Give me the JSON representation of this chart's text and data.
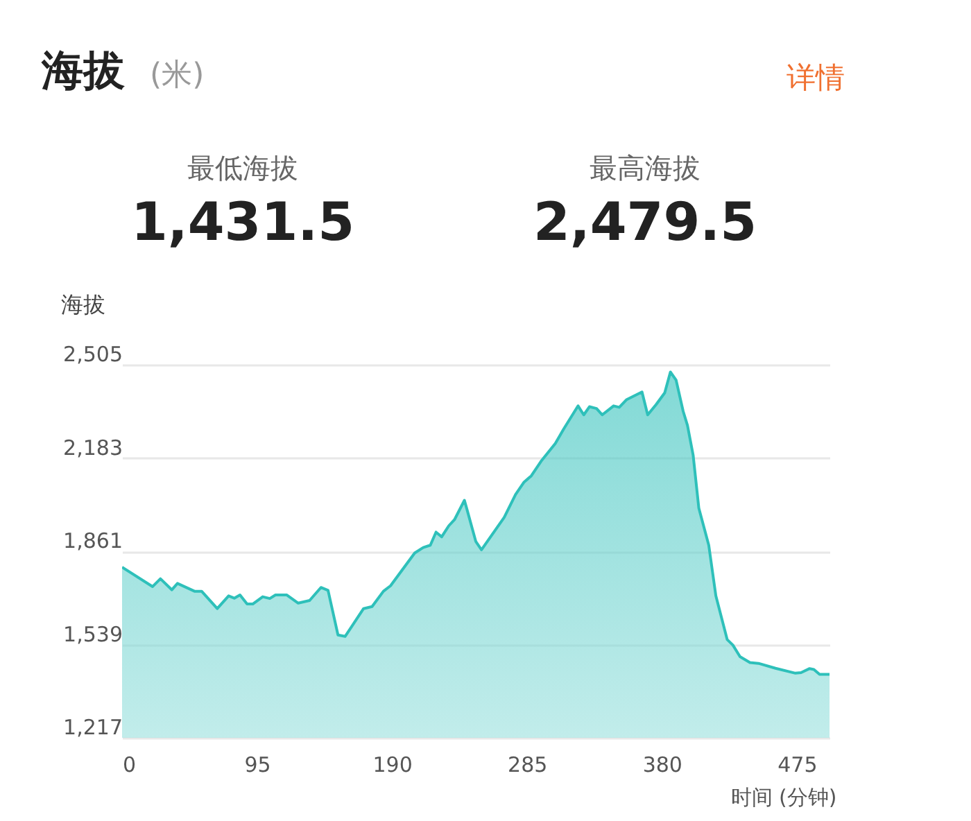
{
  "chart_data": {
    "type": "area",
    "title": "海拔",
    "subtitle": "(米)",
    "xlabel": "时间 (分钟)",
    "ylabel": "海拔",
    "annotations": [
      "详情",
      "最低海拔",
      "1,431.5",
      "最高海拔",
      "2,479.5"
    ],
    "x": [
      0,
      21.5,
      27,
      35,
      39,
      51,
      56,
      67,
      75,
      79,
      83,
      88,
      92,
      99,
      104,
      108,
      116,
      124,
      132,
      140,
      145,
      152,
      157,
      170,
      176,
      184,
      189,
      206,
      212,
      217,
      221,
      225,
      230,
      234,
      241,
      243,
      249,
      253,
      269,
      277,
      283,
      288,
      295,
      305,
      311,
      321,
      325,
      329,
      334,
      338,
      346,
      350,
      355,
      366,
      370,
      376,
      382,
      386,
      390,
      395,
      398,
      402,
      406,
      413,
      418,
      426,
      430,
      435,
      442,
      448,
      460,
      474,
      478,
      484,
      487,
      491,
      498
    ],
    "series": [
      {
        "color": "#2ec0ba",
        "values": [
          1806,
          1739,
          1766,
          1728,
          1750,
          1723,
          1723,
          1663,
          1707,
          1699,
          1710,
          1679,
          1679,
          1704,
          1698,
          1710,
          1710,
          1682,
          1691,
          1736,
          1726,
          1572,
          1567,
          1663,
          1670,
          1723,
          1742,
          1855,
          1874,
          1882,
          1927,
          1911,
          1949,
          1970,
          2037,
          2002,
          1895,
          1866,
          1978,
          2057,
          2100,
          2121,
          2172,
          2233,
          2284,
          2363,
          2332,
          2360,
          2354,
          2332,
          2363,
          2358,
          2384,
          2411,
          2332,
          2368,
          2408,
          2480,
          2452,
          2344,
          2296,
          2193,
          2010,
          1882,
          1707,
          1556,
          1537,
          1497,
          1477,
          1474,
          1457,
          1440,
          1442,
          1456,
          1453,
          1436,
          1436
        ]
      }
    ],
    "xlim": [
      0,
      498
    ],
    "xticks": [
      0,
      95,
      190,
      285,
      380,
      475
    ],
    "ylim": [
      1217,
      2505
    ],
    "yticks": [
      {
        "value": 1217,
        "label": "1,217"
      },
      {
        "value": 1539,
        "label": "1,539"
      },
      {
        "value": 1861,
        "label": "1,861"
      },
      {
        "value": 2183,
        "label": "2,183"
      },
      {
        "value": 2505,
        "label": "2,505"
      }
    ],
    "grid": "y",
    "marker": "none",
    "line_style": "solid"
  }
}
